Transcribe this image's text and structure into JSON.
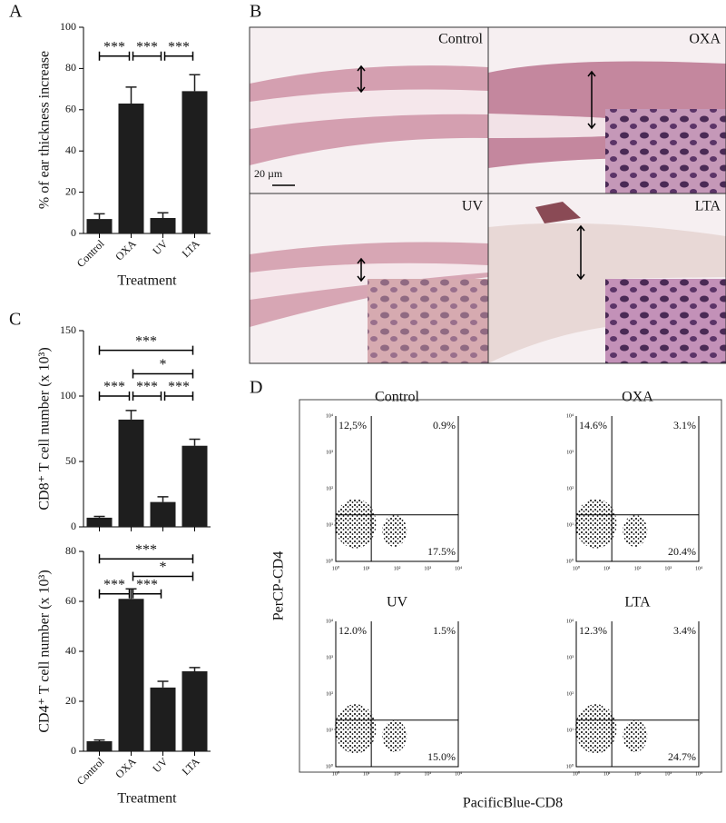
{
  "panel_labels": [
    "A",
    "B",
    "C",
    "D"
  ],
  "chart_data": [
    {
      "type": "bar",
      "ylabel": "% of ear thickness increase",
      "xlabel": "Treatment",
      "categories": [
        "Control",
        "OXA",
        "UV",
        "LTA"
      ],
      "values": [
        7,
        63,
        7.5,
        69
      ],
      "errors": [
        2.5,
        8,
        2.5,
        8
      ],
      "color": "#1e1e1e",
      "ylim": [
        0,
        100
      ],
      "yticks": [
        0,
        20,
        40,
        60,
        80,
        100
      ],
      "brackets": [
        {
          "pair": [
            0,
            1
          ],
          "y": 86,
          "label": "***"
        },
        {
          "pair": [
            1,
            2
          ],
          "y": 86,
          "label": "***"
        },
        {
          "pair": [
            2,
            3
          ],
          "y": 86,
          "label": "***"
        }
      ]
    },
    {
      "type": "bar",
      "ylabel": "CD8⁺ T cell number (x 10³)",
      "categories": [
        null,
        null,
        null,
        null
      ],
      "values": [
        7,
        82,
        19,
        62
      ],
      "errors": [
        1,
        7,
        4,
        5
      ],
      "color": "#1e1e1e",
      "ylim": [
        0,
        150
      ],
      "yticks": [
        0,
        50,
        100,
        150
      ],
      "brackets": [
        {
          "pair": [
            0,
            3
          ],
          "y": 135,
          "label": "***"
        },
        {
          "pair": [
            1,
            3
          ],
          "y": 117,
          "label": "*"
        },
        {
          "pair": [
            0,
            1
          ],
          "y": 100,
          "label": "***"
        },
        {
          "pair": [
            1,
            2
          ],
          "y": 100,
          "label": "***"
        },
        {
          "pair": [
            2,
            3
          ],
          "y": 100,
          "label": "***"
        }
      ]
    },
    {
      "type": "bar",
      "ylabel": "CD4⁺ T cell number (x 10³)",
      "xlabel": "Treatment",
      "categories": [
        "Control",
        "OXA",
        "UV",
        "LTA"
      ],
      "values": [
        4,
        61,
        25.5,
        32
      ],
      "errors": [
        0.5,
        4,
        2.5,
        1.5
      ],
      "color": "#1e1e1e",
      "ylim": [
        0,
        80
      ],
      "yticks": [
        0,
        20,
        40,
        60,
        80
      ],
      "brackets": [
        {
          "pair": [
            0,
            3
          ],
          "y": 77,
          "label": "***"
        },
        {
          "pair": [
            1,
            3
          ],
          "y": 70,
          "label": "*"
        },
        {
          "pair": [
            0,
            1
          ],
          "y": 63,
          "label": "***"
        },
        {
          "pair": [
            1,
            2
          ],
          "y": 63,
          "label": "***"
        }
      ]
    }
  ],
  "histology": {
    "labels": [
      "Control",
      "OXA",
      "UV",
      "LTA"
    ],
    "scale_bar": "20 µm"
  },
  "flow": {
    "x_label": "PacificBlue-CD8",
    "y_label": "PerCP-CD4",
    "ticks": [
      "10⁰",
      "10¹",
      "10²",
      "10³",
      "10⁴"
    ],
    "plots": [
      {
        "title": "Control",
        "quadrants": [
          "12,5%",
          "0.9%",
          "17.5%"
        ]
      },
      {
        "title": "OXA",
        "quadrants": [
          "14.6%",
          "3.1%",
          "20.4%"
        ]
      },
      {
        "title": "UV",
        "quadrants": [
          "12.0%",
          "1.5%",
          "15.0%"
        ]
      },
      {
        "title": "LTA",
        "quadrants": [
          "12.3%",
          "3.4%",
          "24.7%"
        ]
      }
    ]
  }
}
